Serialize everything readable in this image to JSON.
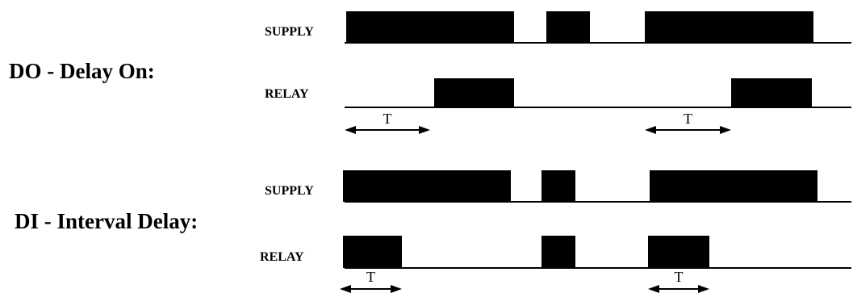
{
  "diagrams": [
    {
      "id": "do",
      "title": "DO - Delay On:",
      "rows": [
        {
          "label": "SUPPLY",
          "pulses": [
            [
              429,
              637
            ],
            [
              677,
              731
            ],
            [
              799,
              1008
            ]
          ]
        },
        {
          "label": "RELAY",
          "pulses": [
            [
              538,
              637
            ],
            [
              906,
              1006
            ]
          ]
        }
      ],
      "timings": [
        {
          "label": "T",
          "from": 427,
          "to": 533
        },
        {
          "label": "T",
          "from": 799,
          "to": 906
        }
      ]
    },
    {
      "id": "di",
      "title": "DI - Interval Delay:",
      "rows": [
        {
          "label": "SUPPLY",
          "pulses": [
            [
              425,
              633
            ],
            [
              671,
              713
            ],
            [
              805,
              1013
            ]
          ]
        },
        {
          "label": "RELAY",
          "pulses": [
            [
              425,
              498
            ],
            [
              671,
              713
            ],
            [
              803,
              879
            ]
          ]
        }
      ],
      "timings": [
        {
          "label": "T",
          "from": 421,
          "to": 498
        },
        {
          "label": "T",
          "from": 803,
          "to": 879
        }
      ]
    }
  ],
  "colors": {
    "ink": "#000000",
    "background": "#ffffff"
  }
}
